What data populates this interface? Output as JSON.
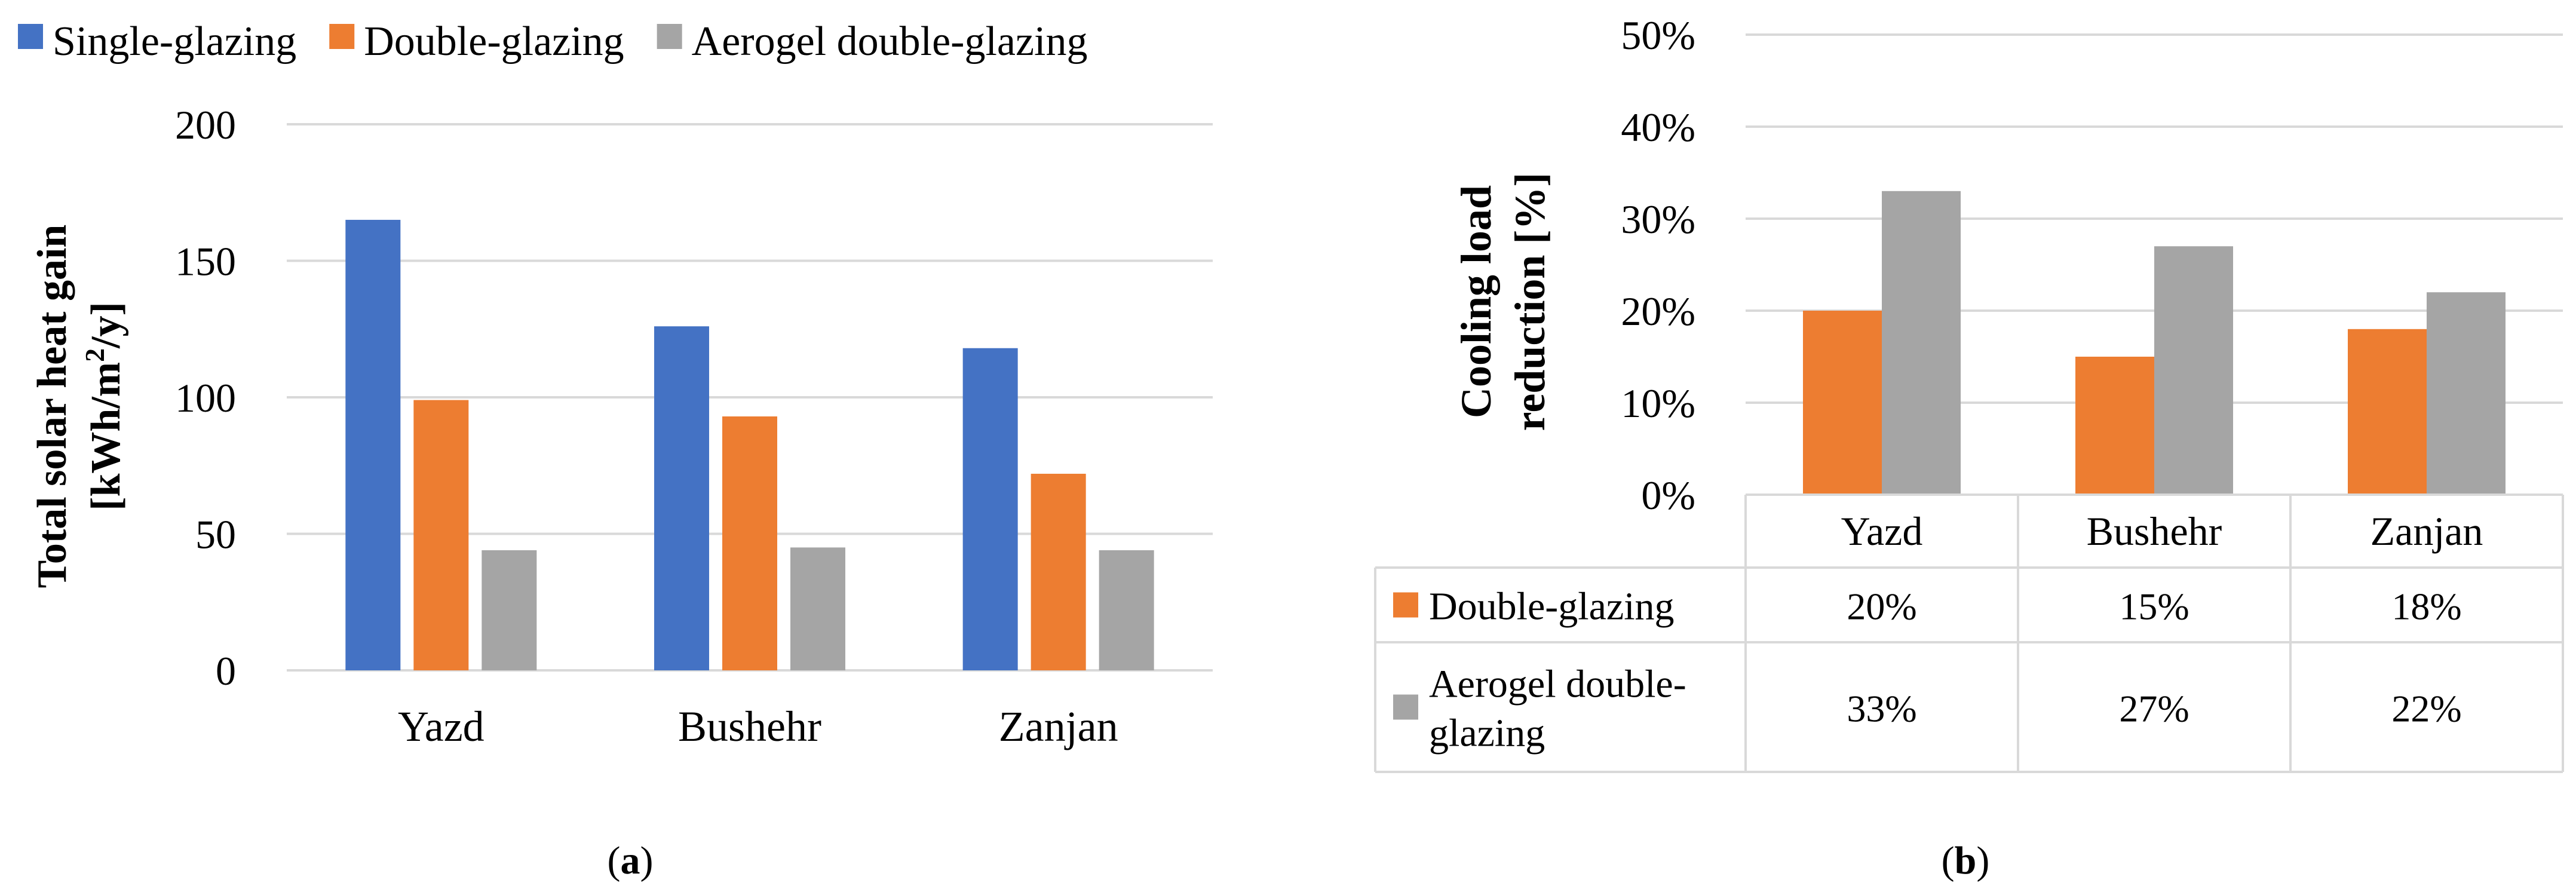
{
  "chart_data": [
    {
      "type": "bar",
      "panel_label": "(a)",
      "panel_letter": "a",
      "categories": [
        "Yazd",
        "Bushehr",
        "Zanjan"
      ],
      "series": [
        {
          "name": "Single-glazing",
          "color": "#4472c4",
          "values": [
            165,
            126,
            118
          ]
        },
        {
          "name": "Double-glazing",
          "color": "#ed7d31",
          "values": [
            99,
            93,
            72
          ]
        },
        {
          "name": "Aerogel double-glazing",
          "color": "#a5a5a5",
          "values": [
            44,
            45,
            44
          ]
        }
      ],
      "ylabel_line1": "Total solar heat gain",
      "ylabel_line2_prefix": "[kWh/m",
      "ylabel_superscript": "2",
      "ylabel_line2_suffix": "/y]",
      "ylim": [
        0,
        200
      ],
      "yticks": [
        0,
        50,
        100,
        150,
        200
      ],
      "grid": true,
      "legend": "top"
    },
    {
      "type": "bar",
      "panel_label": "(b)",
      "panel_letter": "b",
      "categories": [
        "Yazd",
        "Bushehr",
        "Zanjan"
      ],
      "series": [
        {
          "name": "Double-glazing",
          "color": "#ed7d31",
          "values": [
            20,
            15,
            18
          ],
          "labels": [
            "20%",
            "15%",
            "18%"
          ]
        },
        {
          "name": "Aerogel double-glazing",
          "color": "#a5a5a5",
          "values": [
            33,
            27,
            22
          ],
          "labels": [
            "33%",
            "27%",
            "22%"
          ]
        }
      ],
      "series_table_lines": [
        [
          "Double-glazing"
        ],
        [
          "Aerogel double-",
          "glazing"
        ]
      ],
      "ylabel_line1": "Cooling load",
      "ylabel_line2": "reduction [%]",
      "ylim": [
        0,
        50
      ],
      "yticks": [
        "0%",
        "10%",
        "20%",
        "30%",
        "40%",
        "50%"
      ],
      "grid": true,
      "legend": "data-table"
    }
  ]
}
